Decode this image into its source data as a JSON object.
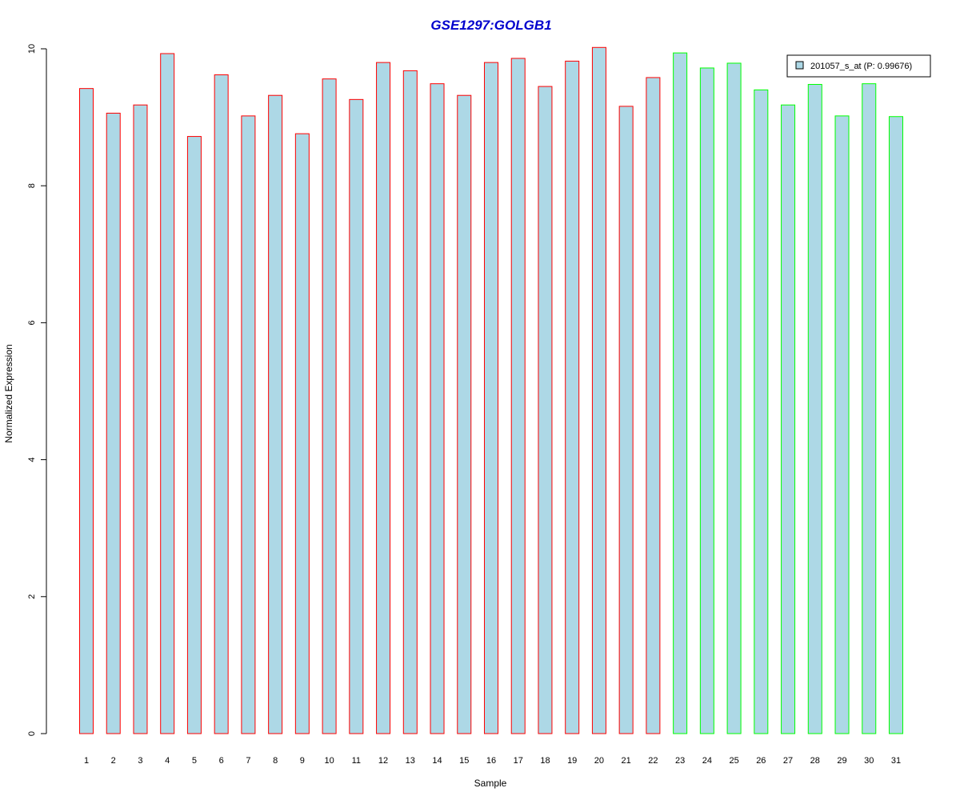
{
  "chart_data": {
    "type": "bar",
    "title": "GSE1297:GOLGB1",
    "xlabel": "Sample",
    "ylabel": "Normalized Expression",
    "categories": [
      "1",
      "2",
      "3",
      "4",
      "5",
      "6",
      "7",
      "8",
      "9",
      "10",
      "11",
      "12",
      "13",
      "14",
      "15",
      "16",
      "17",
      "18",
      "19",
      "20",
      "21",
      "22",
      "23",
      "24",
      "25",
      "26",
      "27",
      "28",
      "29",
      "30",
      "31"
    ],
    "series": [
      {
        "name": "201057_s_at (P: 0.99676)",
        "values": [
          9.42,
          9.06,
          9.18,
          9.93,
          8.72,
          9.62,
          9.02,
          9.32,
          8.76,
          9.56,
          9.26,
          9.8,
          9.68,
          9.49,
          9.32,
          9.8,
          9.86,
          9.45,
          9.82,
          10.02,
          9.16,
          9.58,
          9.94,
          9.72,
          9.79,
          9.4,
          9.18,
          9.48,
          9.02,
          9.49,
          9.01
        ]
      }
    ],
    "group_border_colors": [
      "#ff0000",
      "#ff0000",
      "#ff0000",
      "#ff0000",
      "#ff0000",
      "#ff0000",
      "#ff0000",
      "#ff0000",
      "#ff0000",
      "#ff0000",
      "#ff0000",
      "#ff0000",
      "#ff0000",
      "#ff0000",
      "#ff0000",
      "#ff0000",
      "#ff0000",
      "#ff0000",
      "#ff0000",
      "#ff0000",
      "#ff0000",
      "#ff0000",
      "#00ff00",
      "#00ff00",
      "#00ff00",
      "#00ff00",
      "#00ff00",
      "#00ff00",
      "#00ff00",
      "#00ff00",
      "#00ff00"
    ],
    "ylim": [
      0,
      10
    ],
    "yticks": [
      0,
      2,
      4,
      6,
      8,
      10
    ],
    "grid": false,
    "legend_position": "top-right",
    "colors": {
      "bar_fill": "#add8e6",
      "title": "#0000cd",
      "axis": "#000000"
    }
  }
}
